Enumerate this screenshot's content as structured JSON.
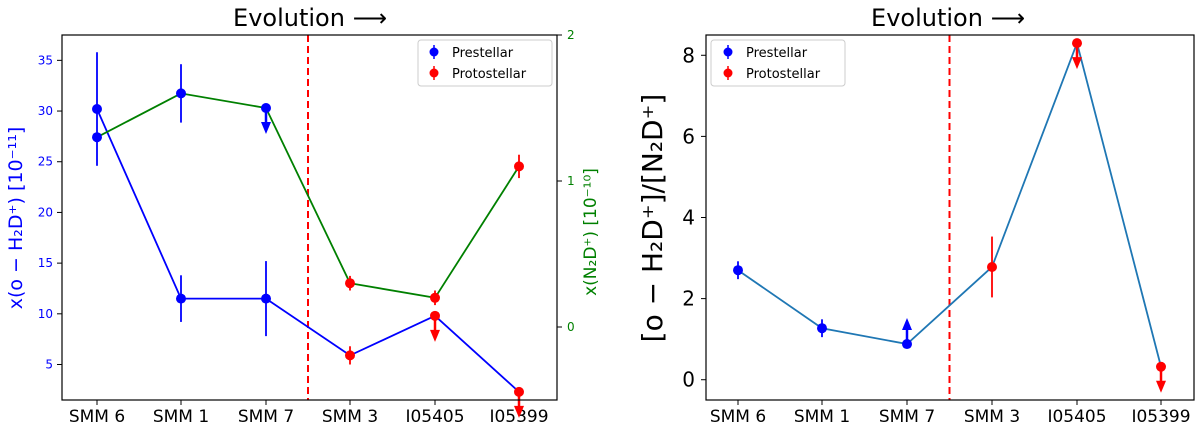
{
  "chart_data": [
    {
      "type": "line",
      "title": "Evolution ⟶",
      "categories": [
        "SMM 6",
        "SMM 1",
        "SMM 7",
        "SMM 3",
        "I05405",
        "I05399"
      ],
      "ylabel_left": "x(o − H₂D⁺) [10⁻¹¹]",
      "ylabel_right": "x(N₂D⁺) [10⁻¹⁰]",
      "ylim_left": [
        1.5,
        37.5
      ],
      "ylim_right": [
        -0.5,
        2
      ],
      "yticks_left": [
        5,
        10,
        15,
        20,
        25,
        30,
        35
      ],
      "yticks_right": [
        0,
        1,
        2
      ],
      "divider_after_index": 2,
      "legend": {
        "position": "top-right",
        "entries": [
          {
            "label": "Prestellar",
            "color": "#0000ff"
          },
          {
            "label": "Protostellar",
            "color": "#ff0000"
          }
        ]
      },
      "series": [
        {
          "axis": "left",
          "line_color": "#0000ff",
          "values": [
            30.2,
            11.5,
            11.5,
            5.9,
            9.8,
            2.3
          ],
          "errors": [
            5.6,
            2.3,
            3.7,
            0.9,
            0,
            0
          ],
          "upper_limit": [
            false,
            false,
            false,
            false,
            true,
            true
          ],
          "lower_limit": [
            false,
            false,
            false,
            false,
            false,
            false
          ],
          "marker_colors": [
            "#0000ff",
            "#0000ff",
            "#0000ff",
            "#ff0000",
            "#ff0000",
            "#ff0000"
          ]
        },
        {
          "axis": "right",
          "line_color": "#008000",
          "values": [
            1.3,
            1.6,
            1.5,
            0.3,
            0.2,
            1.1
          ],
          "errors": [
            0,
            0.2,
            0,
            0.05,
            0.05,
            0.08
          ],
          "upper_limit": [
            false,
            false,
            true,
            false,
            false,
            false
          ],
          "lower_limit": [
            false,
            false,
            false,
            false,
            false,
            false
          ],
          "marker_colors": [
            "#0000ff",
            "#0000ff",
            "#0000ff",
            "#ff0000",
            "#ff0000",
            "#ff0000"
          ]
        }
      ]
    },
    {
      "type": "line",
      "title": "Evolution ⟶",
      "categories": [
        "SMM 6",
        "SMM 1",
        "SMM 7",
        "SMM 3",
        "I05405",
        "I05399"
      ],
      "ylabel": "[o − H₂D⁺]/[N₂D⁺]",
      "ylim": [
        -0.5,
        8.5
      ],
      "yticks": [
        0,
        2,
        4,
        6,
        8
      ],
      "divider_after_index": 2,
      "legend": {
        "position": "top-left",
        "entries": [
          {
            "label": "Prestellar",
            "color": "#0000ff"
          },
          {
            "label": "Protostellar",
            "color": "#ff0000"
          }
        ]
      },
      "series": [
        {
          "line_color": "#1f77b4",
          "values": [
            2.7,
            1.27,
            0.88,
            2.78,
            8.3,
            0.32
          ],
          "errors": [
            0.22,
            0.22,
            0,
            0.75,
            0,
            0
          ],
          "upper_limit": [
            false,
            false,
            false,
            false,
            true,
            true
          ],
          "lower_limit": [
            false,
            false,
            true,
            false,
            false,
            false
          ],
          "marker_colors": [
            "#0000ff",
            "#0000ff",
            "#0000ff",
            "#ff0000",
            "#ff0000",
            "#ff0000"
          ]
        }
      ]
    }
  ]
}
